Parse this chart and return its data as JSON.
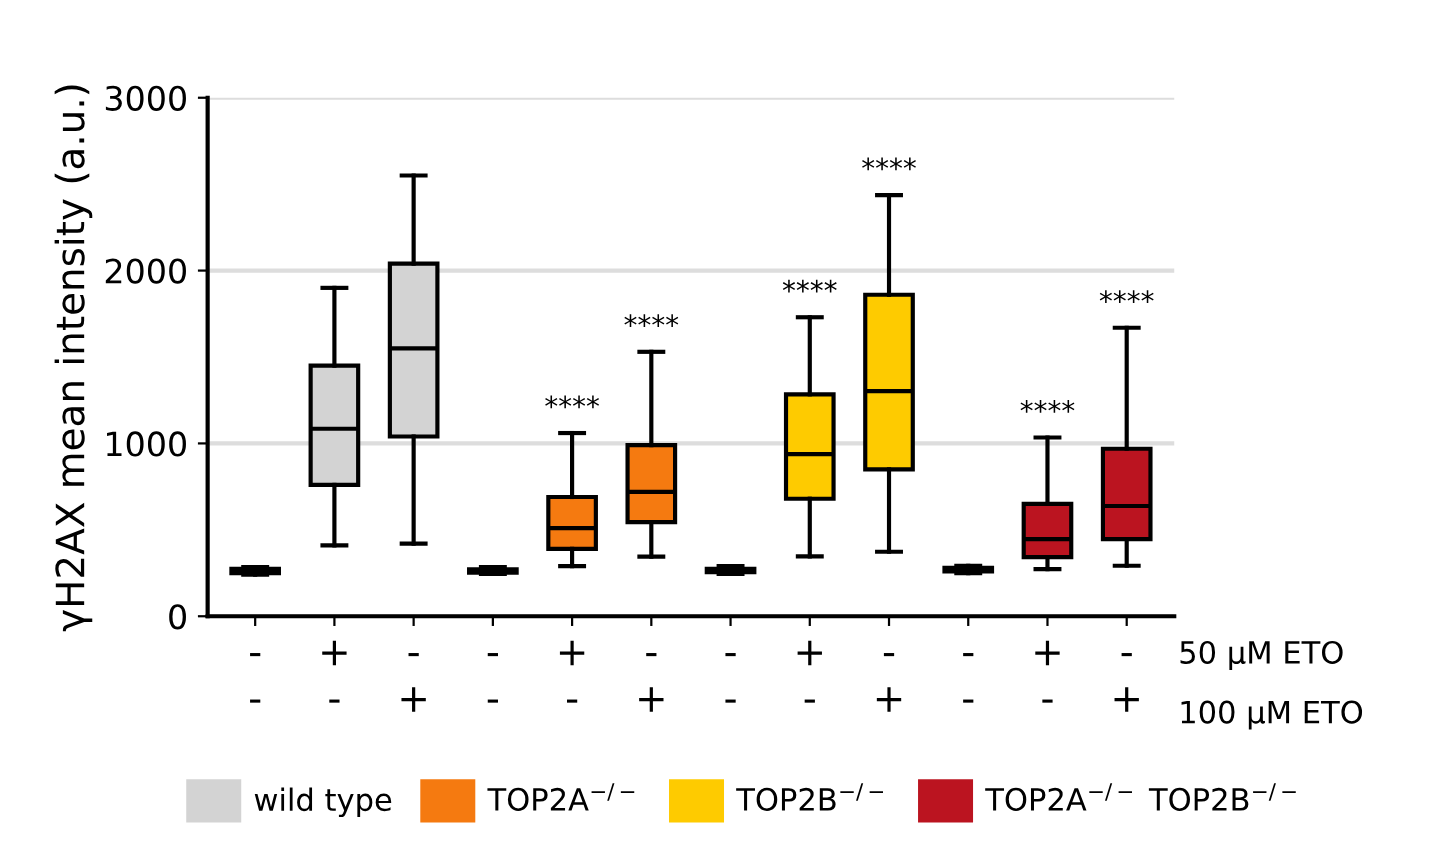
{
  "chart_data": {
    "type": "box",
    "ylabel": "γH2AX mean intensity (a.u.)",
    "categories": [
      "-\n-",
      "+\n-",
      "-\n+",
      "-\n-",
      "+\n-",
      "-\n+",
      "-\n-",
      "+\n-",
      "-\n+",
      "-\n-",
      "+\n-",
      "-\n+"
    ],
    "ylim": [
      0,
      3000
    ],
    "yticks": [
      0,
      1000,
      2000,
      3000
    ],
    "grid": "y",
    "legend": "bottom",
    "series": [
      {
        "name": "wild type",
        "color": "#d3d3d3",
        "boxes": [
          {
            "low": 240,
            "q1": 250,
            "median": 260,
            "q3": 275,
            "high": 285
          },
          {
            "low": 410,
            "q1": 760,
            "median": 1085,
            "q3": 1450,
            "high": 1900
          },
          {
            "low": 420,
            "q1": 1040,
            "median": 1550,
            "q3": 2040,
            "high": 2550
          },
          null,
          null,
          null,
          null,
          null,
          null,
          null,
          null,
          null
        ]
      },
      {
        "name": "TOP2A$^{−/−}$",
        "color": "#f57a10",
        "boxes": [
          null,
          null,
          null,
          {
            "low": 245,
            "q1": 252,
            "median": 262,
            "q3": 272,
            "high": 285
          },
          {
            "low": 290,
            "q1": 390,
            "median": 510,
            "q3": 690,
            "high": 1060
          },
          {
            "low": 345,
            "q1": 545,
            "median": 720,
            "q3": 990,
            "high": 1530
          },
          null,
          null,
          null,
          null,
          null,
          null
        ]
      },
      {
        "name": "TOP2B$^{−/−}$",
        "color": "#fecb00",
        "boxes": [
          null,
          null,
          null,
          null,
          null,
          null,
          {
            "low": 245,
            "q1": 255,
            "median": 265,
            "q3": 275,
            "high": 290
          },
          {
            "low": 346,
            "q1": 680,
            "median": 938,
            "q3": 1284,
            "high": 1730
          },
          {
            "low": 373,
            "q1": 850,
            "median": 1303,
            "q3": 1860,
            "high": 2437
          },
          null,
          null,
          null
        ]
      },
      {
        "name": "TOP2A$^{−/−}$ TOP2B$^{−/−}$",
        "color": "#bb1420",
        "boxes": [
          null,
          null,
          null,
          null,
          null,
          null,
          null,
          null,
          null,
          {
            "low": 250,
            "q1": 260,
            "median": 270,
            "q3": 280,
            "high": 292
          },
          {
            "low": 273,
            "q1": 342,
            "median": 446,
            "q3": 650,
            "high": 1034
          },
          {
            "low": 292,
            "q1": 446,
            "median": 638,
            "q3": 969,
            "high": 1669
          }
        ]
      }
    ],
    "annotations": [
      "****",
      "****",
      "****",
      "****",
      "****",
      "****",
      "50 µM ETO",
      "100 µM ETO"
    ]
  }
}
